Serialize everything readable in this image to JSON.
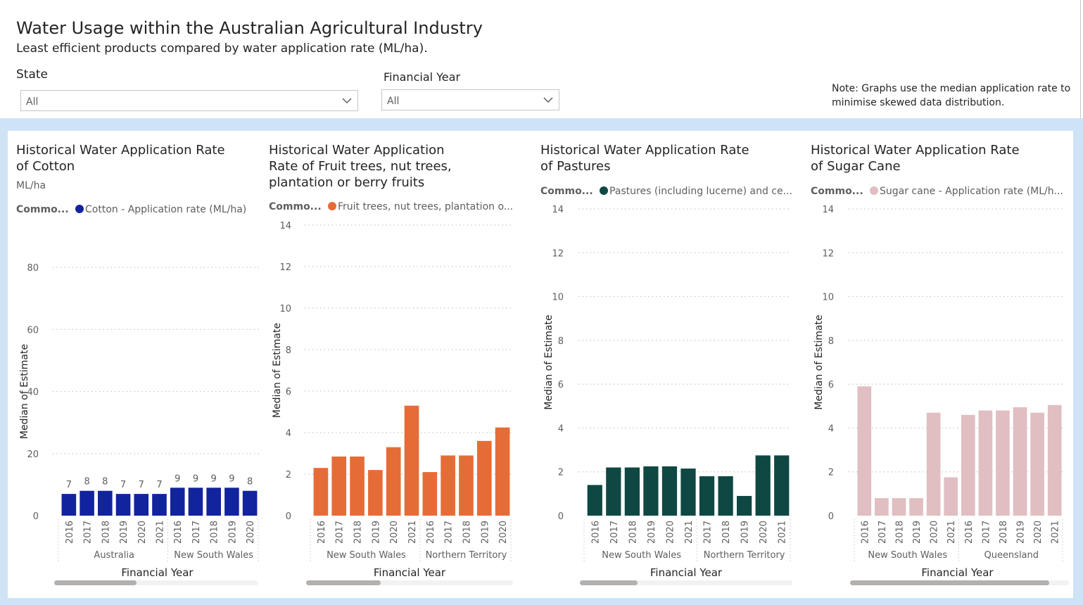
{
  "report": {
    "title": "Water Usage within the Australian Agricultural Industry",
    "subtitle": "Least efficient products compared by water application rate (ML/ha).",
    "note": "Note: Graphs use the median application rate to minimise skewed data distribution."
  },
  "filters": {
    "state": {
      "label": "State",
      "value": "All"
    },
    "year": {
      "label": "Financial Year",
      "value": "All"
    }
  },
  "colors": {
    "cotton": "#12239e",
    "fruit": "#e66c37",
    "pastures": "#0f4842",
    "sugar": "#e0bec2",
    "band": "#cfe3f7"
  },
  "chart_data": [
    {
      "type": "bar",
      "title": "Historical Water Application Rate of Cotton",
      "subtitle": "ML/ha",
      "legend_title": "Commo...",
      "series": [
        {
          "name": "Cotton - Application rate (ML/ha)",
          "color": "#12239e"
        }
      ],
      "categories": [
        "2016",
        "2017",
        "2018",
        "2019",
        "2020",
        "2021",
        "2016",
        "2017",
        "2018",
        "2019",
        "2020"
      ],
      "values": [
        7,
        8,
        8,
        7,
        7,
        7,
        9,
        9,
        9,
        9,
        8
      ],
      "data_labels": [
        "7",
        "8",
        "8",
        "7",
        "7",
        "7",
        "9",
        "9",
        "9",
        "9",
        "8"
      ],
      "groups": [
        {
          "name": "Australia",
          "count": 6
        },
        {
          "name": "New South Wales",
          "count": 5
        }
      ],
      "ylabel": "Median of Estimate",
      "xlabel": "Financial Year",
      "ylim": [
        0,
        80
      ],
      "yticks": [
        0,
        20,
        40,
        60,
        80
      ]
    },
    {
      "type": "bar",
      "title": "Historical Water Application Rate of Fruit trees, nut trees, plantation or berry fruits",
      "legend_title": "Commo...",
      "series": [
        {
          "name": "Fruit trees, nut trees, plantation o...",
          "color": "#e66c37"
        }
      ],
      "categories": [
        "2016",
        "2017",
        "2018",
        "2019",
        "2020",
        "2021",
        "2016",
        "2017",
        "2018",
        "2019",
        "2020"
      ],
      "values": [
        2.3,
        2.85,
        2.85,
        2.2,
        3.3,
        5.3,
        2.1,
        2.9,
        2.9,
        3.6,
        4.25
      ],
      "groups": [
        {
          "name": "New South Wales",
          "count": 6
        },
        {
          "name": "Northern Territory",
          "count": 5
        }
      ],
      "ylabel": "Median of Estimate",
      "xlabel": "Financial Year",
      "ylim": [
        0,
        14
      ],
      "yticks": [
        0,
        2,
        4,
        6,
        8,
        10,
        12,
        14
      ]
    },
    {
      "type": "bar",
      "title": "Historical Water Application Rate of Pastures",
      "legend_title": "Commo...",
      "series": [
        {
          "name": "Pastures (including lucerne) and ce...",
          "color": "#0f4842"
        }
      ],
      "categories": [
        "2016",
        "2017",
        "2018",
        "2019",
        "2020",
        "2021",
        "2017",
        "2018",
        "2019",
        "2020",
        "2021"
      ],
      "values": [
        1.4,
        2.2,
        2.2,
        2.25,
        2.25,
        2.15,
        1.8,
        1.8,
        0.9,
        2.75,
        2.75
      ],
      "groups": [
        {
          "name": "New South Wales",
          "count": 6
        },
        {
          "name": "Northern Territory",
          "count": 5
        }
      ],
      "ylabel": "Median of Estimate",
      "xlabel": "Financial Year",
      "ylim": [
        0,
        14
      ],
      "yticks": [
        0,
        2,
        4,
        6,
        8,
        10,
        12,
        14
      ]
    },
    {
      "type": "bar",
      "title": "Historical Water Application Rate of Sugar Cane",
      "legend_title": "Commo...",
      "series": [
        {
          "name": "Sugar cane - Application rate (ML/h...",
          "color": "#e0bec2"
        }
      ],
      "categories": [
        "2016",
        "2017",
        "2018",
        "2019",
        "2020",
        "2021",
        "2016",
        "2017",
        "2018",
        "2019",
        "2020",
        "2021"
      ],
      "values": [
        5.9,
        0.8,
        0.8,
        0.8,
        4.7,
        1.75,
        4.6,
        4.8,
        4.8,
        4.95,
        4.7,
        5.05
      ],
      "groups": [
        {
          "name": "New South Wales",
          "count": 6
        },
        {
          "name": "Queensland",
          "count": 6
        }
      ],
      "ylabel": "Median of Estimate",
      "xlabel": "Financial Year",
      "ylim": [
        0,
        14
      ],
      "yticks": [
        0,
        2,
        4,
        6,
        8,
        10,
        12,
        14
      ]
    }
  ]
}
